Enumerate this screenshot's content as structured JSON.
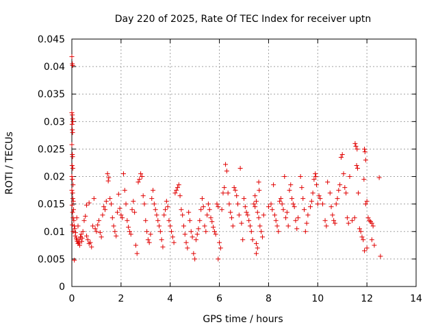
{
  "chart_data": {
    "type": "scatter",
    "title": "Day 220 of 2025, Rate Of TEC Index for receiver uptn",
    "xlabel": "GPS time / hours",
    "ylabel": "ROTI / TECUs",
    "xlim": [
      0,
      14
    ],
    "ylim": [
      0,
      0.045
    ],
    "xticks": [
      0,
      2,
      4,
      6,
      8,
      10,
      12,
      14
    ],
    "xtick_labels": [
      "0",
      "2",
      "4",
      "6",
      "8",
      "10",
      "12",
      "14"
    ],
    "yticks": [
      0,
      0.005,
      0.01,
      0.015,
      0.02,
      0.025,
      0.03,
      0.035,
      0.04,
      0.045
    ],
    "ytick_labels": [
      "0",
      "0.005",
      "0.01",
      "0.015",
      "0.02",
      "0.025",
      "0.03",
      "0.035",
      "0.04",
      "0.045"
    ],
    "grid": true,
    "marker": "+",
    "color": "#e00000",
    "series": [
      {
        "name": "ROTI",
        "points": [
          [
            0.0,
            0.0418
          ],
          [
            0.02,
            0.0405
          ],
          [
            0.03,
            0.0402
          ],
          [
            0.0,
            0.0316
          ],
          [
            0.02,
            0.0312
          ],
          [
            0.03,
            0.0305
          ],
          [
            0.04,
            0.03
          ],
          [
            0.01,
            0.0295
          ],
          [
            0.02,
            0.0285
          ],
          [
            0.03,
            0.028
          ],
          [
            0.0,
            0.0258
          ],
          [
            0.02,
            0.024
          ],
          [
            0.03,
            0.0236
          ],
          [
            0.01,
            0.022
          ],
          [
            0.04,
            0.0215
          ],
          [
            0.0,
            0.02
          ],
          [
            0.02,
            0.0195
          ],
          [
            0.05,
            0.0185
          ],
          [
            0.0,
            0.0175
          ],
          [
            0.03,
            0.017
          ],
          [
            0.04,
            0.016
          ],
          [
            0.06,
            0.0155
          ],
          [
            0.01,
            0.0148
          ],
          [
            0.07,
            0.014
          ],
          [
            0.03,
            0.0135
          ],
          [
            0.05,
            0.0125
          ],
          [
            0.08,
            0.012
          ],
          [
            0.02,
            0.0112
          ],
          [
            0.1,
            0.011
          ],
          [
            0.12,
            0.0105
          ],
          [
            0.05,
            0.01
          ],
          [
            0.15,
            0.0098
          ],
          [
            0.14,
            0.0092
          ],
          [
            0.18,
            0.0088
          ],
          [
            0.2,
            0.0085
          ],
          [
            0.22,
            0.0082
          ],
          [
            0.25,
            0.0078
          ],
          [
            0.28,
            0.008
          ],
          [
            0.3,
            0.0085
          ],
          [
            0.32,
            0.0075
          ],
          [
            0.35,
            0.009
          ],
          [
            0.1,
            0.0048
          ],
          [
            0.2,
            0.0125
          ],
          [
            0.25,
            0.011
          ],
          [
            0.38,
            0.0095
          ],
          [
            0.4,
            0.0082
          ],
          [
            0.42,
            0.0088
          ],
          [
            0.45,
            0.01
          ],
          [
            0.5,
            0.012
          ],
          [
            0.55,
            0.0128
          ],
          [
            0.6,
            0.0092
          ],
          [
            0.65,
            0.0085
          ],
          [
            0.7,
            0.0078
          ],
          [
            0.75,
            0.008
          ],
          [
            0.8,
            0.0072
          ],
          [
            0.6,
            0.0148
          ],
          [
            0.7,
            0.0152
          ],
          [
            0.9,
            0.016
          ],
          [
            0.85,
            0.011
          ],
          [
            0.95,
            0.0105
          ],
          [
            1.0,
            0.01
          ],
          [
            1.05,
            0.0112
          ],
          [
            1.1,
            0.012
          ],
          [
            1.15,
            0.0098
          ],
          [
            1.2,
            0.009
          ],
          [
            1.25,
            0.013
          ],
          [
            1.3,
            0.0145
          ],
          [
            1.35,
            0.014
          ],
          [
            1.4,
            0.0155
          ],
          [
            1.45,
            0.0205
          ],
          [
            1.5,
            0.0198
          ],
          [
            1.48,
            0.0192
          ],
          [
            1.55,
            0.016
          ],
          [
            1.6,
            0.015
          ],
          [
            1.65,
            0.0125
          ],
          [
            1.7,
            0.011
          ],
          [
            1.75,
            0.01
          ],
          [
            1.8,
            0.0092
          ],
          [
            1.85,
            0.0135
          ],
          [
            1.9,
            0.0168
          ],
          [
            1.95,
            0.0142
          ],
          [
            2.0,
            0.013
          ],
          [
            2.05,
            0.0125
          ],
          [
            2.1,
            0.0205
          ],
          [
            2.15,
            0.0175
          ],
          [
            2.2,
            0.015
          ],
          [
            2.25,
            0.012
          ],
          [
            2.3,
            0.0108
          ],
          [
            2.35,
            0.01
          ],
          [
            2.4,
            0.0095
          ],
          [
            2.45,
            0.014
          ],
          [
            2.5,
            0.0155
          ],
          [
            2.55,
            0.0135
          ],
          [
            2.6,
            0.0075
          ],
          [
            2.65,
            0.006
          ],
          [
            2.7,
            0.019
          ],
          [
            2.75,
            0.0195
          ],
          [
            2.8,
            0.0205
          ],
          [
            2.85,
            0.02
          ],
          [
            2.9,
            0.0165
          ],
          [
            2.95,
            0.015
          ],
          [
            3.0,
            0.012
          ],
          [
            3.05,
            0.01
          ],
          [
            3.1,
            0.0085
          ],
          [
            3.15,
            0.008
          ],
          [
            3.2,
            0.0095
          ],
          [
            3.25,
            0.016
          ],
          [
            3.3,
            0.0175
          ],
          [
            3.35,
            0.015
          ],
          [
            3.4,
            0.014
          ],
          [
            3.45,
            0.013
          ],
          [
            3.5,
            0.012
          ],
          [
            3.55,
            0.011
          ],
          [
            3.6,
            0.01
          ],
          [
            3.65,
            0.0085
          ],
          [
            3.7,
            0.0072
          ],
          [
            3.75,
            0.013
          ],
          [
            3.8,
            0.014
          ],
          [
            3.85,
            0.0155
          ],
          [
            3.9,
            0.0145
          ],
          [
            3.95,
            0.012
          ],
          [
            4.0,
            0.011
          ],
          [
            4.05,
            0.01
          ],
          [
            4.1,
            0.009
          ],
          [
            4.15,
            0.008
          ],
          [
            4.2,
            0.017
          ],
          [
            4.25,
            0.0175
          ],
          [
            4.3,
            0.018
          ],
          [
            4.35,
            0.0185
          ],
          [
            4.4,
            0.0165
          ],
          [
            4.45,
            0.014
          ],
          [
            4.5,
            0.013
          ],
          [
            4.55,
            0.011
          ],
          [
            4.6,
            0.0095
          ],
          [
            4.65,
            0.008
          ],
          [
            4.7,
            0.007
          ],
          [
            4.75,
            0.0135
          ],
          [
            4.8,
            0.012
          ],
          [
            4.85,
            0.01
          ],
          [
            4.9,
            0.009
          ],
          [
            4.95,
            0.006
          ],
          [
            5.0,
            0.005
          ],
          [
            5.05,
            0.0085
          ],
          [
            5.1,
            0.0095
          ],
          [
            5.15,
            0.0105
          ],
          [
            5.2,
            0.012
          ],
          [
            5.25,
            0.014
          ],
          [
            5.3,
            0.016
          ],
          [
            5.35,
            0.0145
          ],
          [
            5.4,
            0.011
          ],
          [
            5.45,
            0.01
          ],
          [
            5.5,
            0.013
          ],
          [
            5.55,
            0.015
          ],
          [
            5.6,
            0.014
          ],
          [
            5.65,
            0.0125
          ],
          [
            5.7,
            0.0118
          ],
          [
            5.75,
            0.0108
          ],
          [
            5.8,
            0.01
          ],
          [
            5.85,
            0.0095
          ],
          [
            5.9,
            0.015
          ],
          [
            5.95,
            0.0145
          ],
          [
            6.0,
            0.008
          ],
          [
            6.05,
            0.007
          ],
          [
            5.95,
            0.005
          ],
          [
            6.1,
            0.014
          ],
          [
            6.15,
            0.017
          ],
          [
            6.2,
            0.018
          ],
          [
            6.25,
            0.0222
          ],
          [
            6.3,
            0.021
          ],
          [
            6.35,
            0.017
          ],
          [
            6.4,
            0.015
          ],
          [
            6.45,
            0.0135
          ],
          [
            6.5,
            0.0125
          ],
          [
            6.55,
            0.011
          ],
          [
            6.6,
            0.018
          ],
          [
            6.65,
            0.0175
          ],
          [
            6.7,
            0.0165
          ],
          [
            6.75,
            0.015
          ],
          [
            6.8,
            0.013
          ],
          [
            6.85,
            0.0215
          ],
          [
            6.9,
            0.0115
          ],
          [
            6.95,
            0.0085
          ],
          [
            7.0,
            0.016
          ],
          [
            7.05,
            0.0145
          ],
          [
            7.1,
            0.0135
          ],
          [
            7.15,
            0.013
          ],
          [
            7.2,
            0.012
          ],
          [
            7.25,
            0.011
          ],
          [
            7.3,
            0.01
          ],
          [
            7.35,
            0.0085
          ],
          [
            7.4,
            0.015
          ],
          [
            7.45,
            0.0145
          ],
          [
            7.5,
            0.0155
          ],
          [
            7.55,
            0.0135
          ],
          [
            7.6,
            0.0125
          ],
          [
            7.65,
            0.011
          ],
          [
            7.7,
            0.01
          ],
          [
            7.75,
            0.009
          ],
          [
            7.8,
            0.013
          ],
          [
            7.5,
            0.006
          ],
          [
            7.55,
            0.007
          ],
          [
            7.6,
            0.019
          ],
          [
            7.62,
            0.0175
          ],
          [
            7.45,
            0.0165
          ],
          [
            7.5,
            0.0078
          ],
          [
            8.0,
            0.0145
          ],
          [
            8.1,
            0.015
          ],
          [
            8.15,
            0.014
          ],
          [
            8.2,
            0.0185
          ],
          [
            8.25,
            0.013
          ],
          [
            8.3,
            0.012
          ],
          [
            8.35,
            0.011
          ],
          [
            8.4,
            0.01
          ],
          [
            8.45,
            0.0155
          ],
          [
            8.5,
            0.016
          ],
          [
            8.55,
            0.015
          ],
          [
            8.6,
            0.014
          ],
          [
            8.65,
            0.02
          ],
          [
            8.7,
            0.0125
          ],
          [
            8.75,
            0.0135
          ],
          [
            8.8,
            0.011
          ],
          [
            8.85,
            0.0175
          ],
          [
            8.9,
            0.0185
          ],
          [
            8.95,
            0.016
          ],
          [
            9.0,
            0.015
          ],
          [
            9.05,
            0.0145
          ],
          [
            9.1,
            0.012
          ],
          [
            9.15,
            0.0105
          ],
          [
            9.2,
            0.0125
          ],
          [
            9.3,
            0.02
          ],
          [
            9.35,
            0.018
          ],
          [
            9.4,
            0.016
          ],
          [
            9.45,
            0.014
          ],
          [
            9.5,
            0.01
          ],
          [
            9.55,
            0.0115
          ],
          [
            9.6,
            0.013
          ],
          [
            9.7,
            0.0145
          ],
          [
            9.75,
            0.0155
          ],
          [
            9.8,
            0.017
          ],
          [
            9.85,
            0.0195
          ],
          [
            9.9,
            0.0205
          ],
          [
            9.92,
            0.02
          ],
          [
            9.95,
            0.0185
          ],
          [
            10.0,
            0.015
          ],
          [
            10.05,
            0.0165
          ],
          [
            10.1,
            0.016
          ],
          [
            10.2,
            0.015
          ],
          [
            10.3,
            0.012
          ],
          [
            10.35,
            0.011
          ],
          [
            10.4,
            0.019
          ],
          [
            10.5,
            0.017
          ],
          [
            10.55,
            0.0145
          ],
          [
            10.6,
            0.013
          ],
          [
            10.65,
            0.012
          ],
          [
            10.7,
            0.0115
          ],
          [
            10.75,
            0.015
          ],
          [
            10.8,
            0.016
          ],
          [
            10.85,
            0.0175
          ],
          [
            10.9,
            0.0185
          ],
          [
            10.95,
            0.0235
          ],
          [
            11.0,
            0.024
          ],
          [
            11.05,
            0.0205
          ],
          [
            11.1,
            0.018
          ],
          [
            11.15,
            0.017
          ],
          [
            11.2,
            0.0125
          ],
          [
            11.25,
            0.0115
          ],
          [
            11.3,
            0.02
          ],
          [
            11.4,
            0.012
          ],
          [
            11.5,
            0.0125
          ],
          [
            11.52,
            0.026
          ],
          [
            11.55,
            0.0255
          ],
          [
            11.6,
            0.025
          ],
          [
            11.58,
            0.022
          ],
          [
            11.62,
            0.0215
          ],
          [
            11.65,
            0.017
          ],
          [
            11.7,
            0.0105
          ],
          [
            11.75,
            0.01
          ],
          [
            11.8,
            0.009
          ],
          [
            11.85,
            0.0085
          ],
          [
            11.9,
            0.0065
          ],
          [
            11.95,
            0.015
          ],
          [
            12.0,
            0.0155
          ],
          [
            11.9,
            0.025
          ],
          [
            11.92,
            0.0245
          ],
          [
            11.95,
            0.023
          ],
          [
            11.88,
            0.0195
          ],
          [
            12.05,
            0.0125
          ],
          [
            12.1,
            0.012
          ],
          [
            12.15,
            0.0118
          ],
          [
            12.2,
            0.0115
          ],
          [
            12.25,
            0.011
          ],
          [
            12.0,
            0.007
          ],
          [
            12.2,
            0.0085
          ],
          [
            12.3,
            0.0075
          ],
          [
            12.5,
            0.0198
          ],
          [
            12.55,
            0.0055
          ]
        ]
      }
    ]
  }
}
